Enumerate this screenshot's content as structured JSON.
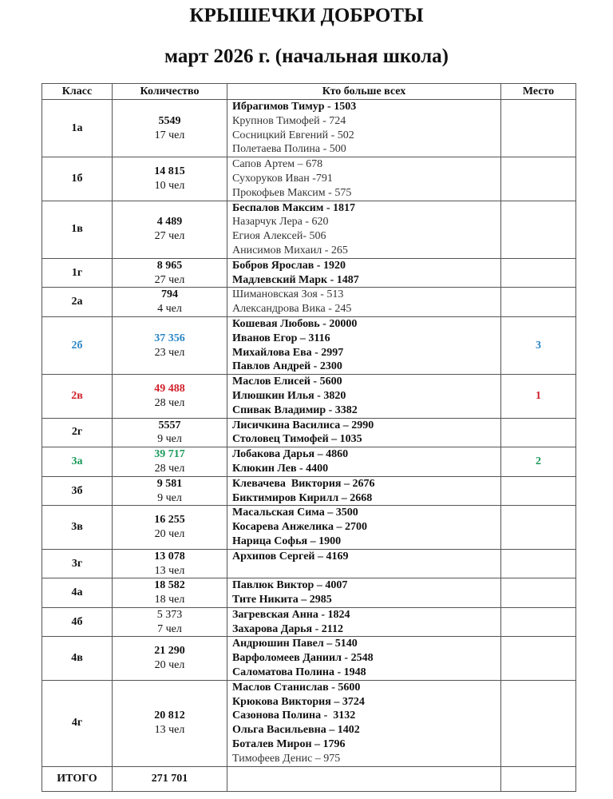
{
  "title": "КРЫШЕЧКИ ДОБРОТЫ",
  "subtitle": "март  2026 г. (начальная школа)",
  "colors": {
    "first": "#d0202a",
    "second": "#1a9a5a",
    "third": "#2a86c5"
  },
  "headers": [
    "Класс",
    "Количество",
    "Кто больше всех",
    "Место"
  ],
  "rows": [
    {
      "cls": "1а",
      "count": "5549",
      "count_bold": true,
      "people_count": "17 чел",
      "place": "",
      "color": "",
      "people": [
        {
          "t": "Ибрагимов Тимур - 1503",
          "b": true
        },
        {
          "t": "Крупнов Тимофей - 724",
          "b": false
        },
        {
          "t": "Сосницкий Евгений - 502",
          "b": false
        },
        {
          "t": "Полетаева Полина - 500",
          "b": false
        }
      ]
    },
    {
      "cls": "1б",
      "count": "14 815",
      "count_bold": true,
      "people_count": "10 чел",
      "place": "",
      "color": "",
      "people": [
        {
          "t": "Сапов Артем – 678",
          "b": false
        },
        {
          "t": "Сухоруков Иван -791",
          "b": false
        },
        {
          "t": "Прокофьев Максим - 575",
          "b": false
        }
      ]
    },
    {
      "cls": "1в",
      "count": "4 489",
      "count_bold": true,
      "people_count": "27 чел",
      "place": "",
      "color": "",
      "people": [
        {
          "t": "Беспалов Максим - 1817",
          "b": true
        },
        {
          "t": "Назарчук Лера - 620",
          "b": false
        },
        {
          "t": "Егиоя Алексей- 506",
          "b": false
        },
        {
          "t": "Анисимов Михаил - 265",
          "b": false
        }
      ]
    },
    {
      "cls": "1г",
      "count": "8 965",
      "count_bold": true,
      "people_count": "27 чел",
      "place": "",
      "color": "",
      "people": [
        {
          "t": "Бобров Ярослав - 1920",
          "b": true
        },
        {
          "t": "Мадлевский Марк - 1487",
          "b": true
        }
      ]
    },
    {
      "cls": "2а",
      "count": "794",
      "count_bold": true,
      "people_count": "4 чел",
      "place": "",
      "color": "",
      "people": [
        {
          "t": "Шимановская Зоя - 513",
          "b": false
        },
        {
          "t": "Александрова Вика - 245",
          "b": false
        }
      ]
    },
    {
      "cls": "2б",
      "count": "37 356",
      "count_bold": true,
      "people_count": "23 чел",
      "place": "3",
      "color": "#2a86c5",
      "people": [
        {
          "t": "Кошевая Любовь - 20000",
          "b": true
        },
        {
          "t": "Иванов Егор – 3116",
          "b": true
        },
        {
          "t": "Михайлова Ева - 2997",
          "b": true
        },
        {
          "t": "Павлов Андрей - 2300",
          "b": true
        }
      ]
    },
    {
      "cls": "2в",
      "count": "49 488",
      "count_bold": true,
      "people_count": "28 чел",
      "place": "1",
      "color": "#d0202a",
      "people": [
        {
          "t": "Маслов Елисей - 5600",
          "b": true
        },
        {
          "t": "Илюшкин Илья - 3820",
          "b": true
        },
        {
          "t": "Спивак Владимир - 3382",
          "b": true
        }
      ]
    },
    {
      "cls": "2г",
      "count": "5557",
      "count_bold": true,
      "people_count": "9 чел",
      "place": "",
      "color": "",
      "people": [
        {
          "t": "Лисичкина Василиса – 2990",
          "b": true
        },
        {
          "t": "Столовец Тимофей – 1035",
          "b": true
        }
      ]
    },
    {
      "cls": "3а",
      "count": "39 717",
      "count_bold": true,
      "people_count": "28 чел",
      "place": "2",
      "color": "#1a9a5a",
      "people": [
        {
          "t": "Лобакова Дарья – 4860",
          "b": true
        },
        {
          "t": "Клюкин Лев - 4400",
          "b": true
        }
      ]
    },
    {
      "cls": "3б",
      "count": "9 581",
      "count_bold": true,
      "people_count": "9 чел",
      "place": "",
      "color": "",
      "people": [
        {
          "t": "Клевачева  Виктория – 2676",
          "b": true
        },
        {
          "t": "Биктимиров Кирилл – 2668",
          "b": true
        }
      ]
    },
    {
      "cls": "3в",
      "count": "16 255",
      "count_bold": true,
      "people_count": "20 чел",
      "place": "",
      "color": "",
      "people": [
        {
          "t": "Масальская Сима – 3500",
          "b": true
        },
        {
          "t": "Косарева Анжелика – 2700",
          "b": true
        },
        {
          "t": "Нарица Софья – 1900",
          "b": true
        }
      ]
    },
    {
      "cls": "3г",
      "count": "13 078",
      "count_bold": true,
      "people_count": "13 чел",
      "place": "",
      "color": "",
      "people": [
        {
          "t": "Архипов Сергей – 4169",
          "b": true
        },
        {
          "t": "",
          "b": false
        }
      ]
    },
    {
      "cls": "4а",
      "count": "18 582",
      "count_bold": true,
      "people_count": "18 чел",
      "place": "",
      "color": "",
      "people": [
        {
          "t": "Павлюк Виктор – 4007",
          "b": true
        },
        {
          "t": "Тите Никита – 2985",
          "b": true
        }
      ]
    },
    {
      "cls": "4б",
      "count": "5 373",
      "count_bold": false,
      "people_count": "7 чел",
      "place": "",
      "color": "",
      "people": [
        {
          "t": "Загревская Анна - 1824",
          "b": true
        },
        {
          "t": "Захарова Дарья - 2112",
          "b": true
        }
      ]
    },
    {
      "cls": "4в",
      "count": "21 290",
      "count_bold": true,
      "people_count": "20 чел",
      "place": "",
      "color": "",
      "people": [
        {
          "t": "Андрюшин Павел – 5140",
          "b": true
        },
        {
          "t": "Варфоломеев Даниил - 2548",
          "b": true
        },
        {
          "t": "Саломатова Полина - 1948",
          "b": true
        }
      ]
    },
    {
      "cls": "4г",
      "count": "20 812",
      "count_bold": true,
      "people_count": "13 чел",
      "place": "",
      "color": "",
      "people": [
        {
          "t": "Маслов Станислав - 5600",
          "b": true
        },
        {
          "t": "Крюкова Виктория – 3724",
          "b": true
        },
        {
          "t": "Сазонова Полина -  3132",
          "b": true
        },
        {
          "t": "Ольга Васильевна – 1402",
          "b": true
        },
        {
          "t": "Боталев Мирон – 1796",
          "b": true
        },
        {
          "t": "Тимофеев Денис – 975",
          "b": false
        }
      ]
    }
  ],
  "total": {
    "label": "ИТОГО",
    "count": "271 701"
  }
}
